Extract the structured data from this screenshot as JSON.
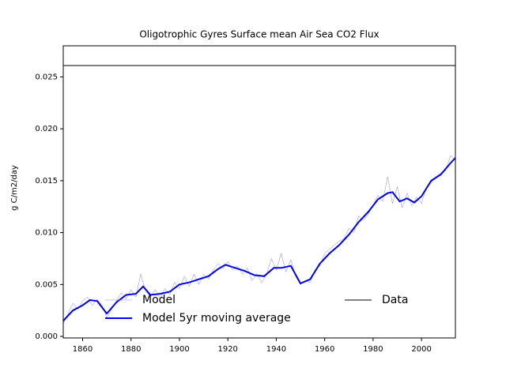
{
  "chart_data": {
    "type": "line",
    "title": "Oligotrophic Gyres Surface mean Air Sea CO2 Flux",
    "y_label": "g C/m2/day",
    "xlim": [
      1852,
      2014
    ],
    "ylim": [
      -0.00015,
      0.028
    ],
    "xticks": [
      1860,
      1880,
      1900,
      1920,
      1940,
      1960,
      1980,
      2000
    ],
    "yticks": [
      {
        "value": 0,
        "label": "0.000"
      },
      {
        "value": 0.005,
        "label": "0.005"
      },
      {
        "value": 0.01,
        "label": "0.010"
      },
      {
        "value": 0.015,
        "label": "0.015"
      },
      {
        "value": 0.02,
        "label": "0.020"
      },
      {
        "value": 0.025,
        "label": "0.025"
      }
    ],
    "series": [
      {
        "name": "Model",
        "color": "#8080ff",
        "x": [
          1852,
          1854,
          1856,
          1858,
          1860,
          1862,
          1864,
          1866,
          1868,
          1870,
          1872,
          1874,
          1876,
          1878,
          1880,
          1882,
          1884,
          1886,
          1888,
          1890,
          1892,
          1894,
          1896,
          1898,
          1900,
          1902,
          1904,
          1906,
          1908,
          1910,
          1912,
          1914,
          1916,
          1918,
          1920,
          1922,
          1924,
          1926,
          1928,
          1930,
          1932,
          1934,
          1936,
          1938,
          1940,
          1942,
          1944,
          1946,
          1948,
          1950,
          1952,
          1954,
          1956,
          1958,
          1960,
          1962,
          1964,
          1966,
          1968,
          1970,
          1972,
          1974,
          1976,
          1978,
          1980,
          1982,
          1984,
          1986,
          1988,
          1990,
          1992,
          1994,
          1996,
          1998,
          2000,
          2002,
          2004,
          2006,
          2008,
          2010,
          2012,
          2014
        ],
        "values": [
          0.0012,
          0.0022,
          0.0032,
          0.0026,
          0.0034,
          0.0038,
          0.003,
          0.0036,
          0.003,
          0.0018,
          0.0026,
          0.0034,
          0.0042,
          0.0036,
          0.0045,
          0.0038,
          0.006,
          0.0044,
          0.0038,
          0.0045,
          0.0036,
          0.0046,
          0.004,
          0.0052,
          0.0046,
          0.0058,
          0.0048,
          0.006,
          0.005,
          0.006,
          0.0055,
          0.0064,
          0.007,
          0.0065,
          0.0072,
          0.0064,
          0.0068,
          0.006,
          0.0066,
          0.0054,
          0.006,
          0.0052,
          0.006,
          0.0075,
          0.0064,
          0.008,
          0.0062,
          0.0074,
          0.0058,
          0.005,
          0.0054,
          0.0052,
          0.0064,
          0.0068,
          0.008,
          0.0084,
          0.0088,
          0.0092,
          0.0094,
          0.0104,
          0.01,
          0.0116,
          0.0112,
          0.0118,
          0.0126,
          0.0136,
          0.013,
          0.0154,
          0.0128,
          0.0144,
          0.0124,
          0.0138,
          0.0126,
          0.0134,
          0.0128,
          0.0144,
          0.0148,
          0.0154,
          0.0158,
          0.016,
          0.0174,
          0.017
        ]
      },
      {
        "name": "Model 5yr moving average",
        "color": "#0000ee",
        "x": [
          1852,
          1856,
          1860,
          1863,
          1866,
          1870,
          1874,
          1878,
          1882,
          1885,
          1888,
          1892,
          1896,
          1900,
          1904,
          1908,
          1912,
          1916,
          1919,
          1923,
          1927,
          1931,
          1935,
          1939,
          1942,
          1946,
          1950,
          1954,
          1958,
          1962,
          1966,
          1970,
          1974,
          1978,
          1982,
          1986,
          1988,
          1991,
          1994,
          1997,
          2000,
          2004,
          2008,
          2012,
          2014
        ],
        "values": [
          0.0015,
          0.0025,
          0.003,
          0.0035,
          0.0034,
          0.0022,
          0.0033,
          0.004,
          0.0041,
          0.0048,
          0.004,
          0.0041,
          0.0043,
          0.005,
          0.0052,
          0.0055,
          0.0058,
          0.0065,
          0.0069,
          0.0066,
          0.0063,
          0.0059,
          0.0058,
          0.0066,
          0.0066,
          0.0068,
          0.0051,
          0.0055,
          0.007,
          0.008,
          0.0088,
          0.0098,
          0.011,
          0.012,
          0.0132,
          0.0138,
          0.0139,
          0.013,
          0.0133,
          0.0129,
          0.0135,
          0.015,
          0.0156,
          0.0167,
          0.0172
        ]
      },
      {
        "name": "Data",
        "color": "#000000",
        "x": [
          1852,
          2014
        ],
        "values": [
          0.0261,
          0.0261
        ]
      }
    ]
  }
}
